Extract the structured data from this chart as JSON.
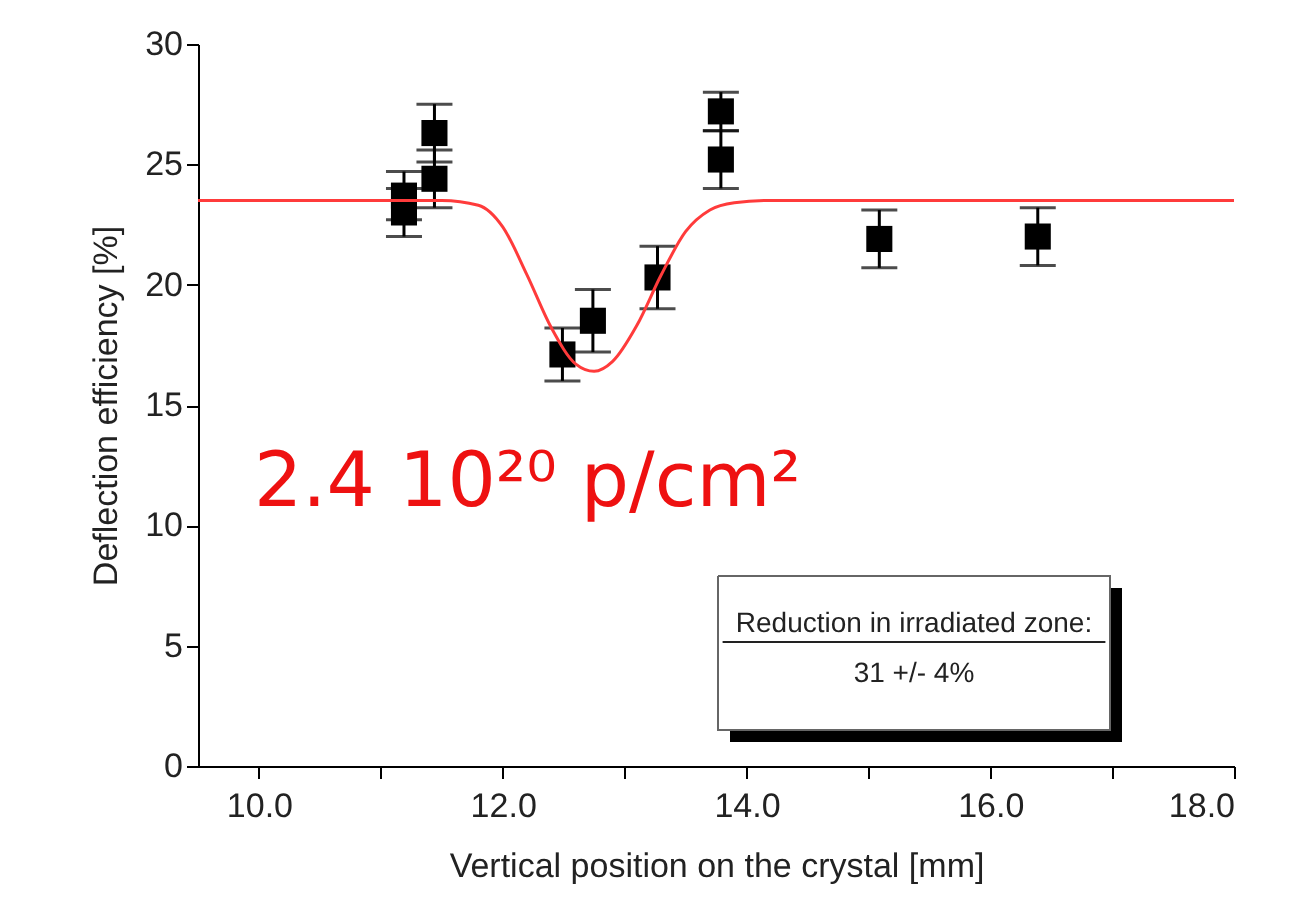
{
  "chart_data": {
    "type": "scatter",
    "xlabel": "Vertical position on the crystal [mm]",
    "ylabel": "Deflection efficiency [%]",
    "xlim": [
      9.5,
      18.0
    ],
    "xticks": [
      {
        "value": 10,
        "label": "10.0"
      },
      {
        "value": 11,
        "label": null
      },
      {
        "value": 12,
        "label": "12.0"
      },
      {
        "value": 13,
        "label": null
      },
      {
        "value": 14,
        "label": "14.0"
      },
      {
        "value": 15,
        "label": null
      },
      {
        "value": 16,
        "label": "16.0"
      },
      {
        "value": 17,
        "label": null
      },
      {
        "value": 18,
        "label": "18.0"
      }
    ],
    "ylim": [
      0,
      30
    ],
    "yticks": [
      0,
      5,
      10,
      15,
      20,
      25,
      30
    ],
    "grid": false,
    "series": [
      {
        "marker": "square",
        "color": "#000000",
        "x": [
          11.19,
          11.19,
          11.44,
          11.44,
          12.49,
          12.74,
          13.27,
          13.79,
          13.79,
          15.09,
          16.39
        ],
        "values": [
          23.7,
          23.0,
          26.3,
          24.4,
          17.1,
          18.5,
          20.3,
          27.2,
          25.2,
          21.9,
          22.0
        ],
        "errors": [
          1.0,
          1.0,
          1.2,
          1.2,
          1.1,
          1.3,
          1.3,
          0.8,
          1.2,
          1.2,
          1.2
        ]
      },
      {
        "type": "line",
        "color": "#ff3b3b",
        "line_style": "solid",
        "x": [
          9.5,
          11.5,
          11.8,
          12.0,
          12.2,
          12.4,
          12.6,
          12.75,
          12.9,
          13.1,
          13.3,
          13.5,
          13.7,
          13.9,
          14.2,
          18.0
        ],
        "values": [
          23.5,
          23.5,
          23.3,
          22.4,
          20.4,
          18.2,
          16.7,
          16.4,
          16.8,
          18.3,
          20.4,
          22.2,
          23.1,
          23.4,
          23.5,
          23.5
        ]
      }
    ],
    "annotations": [
      "2.4 10²⁰ p/cm²",
      "Reduction in irradiated zone:",
      "31 +/- 4%"
    ]
  }
}
